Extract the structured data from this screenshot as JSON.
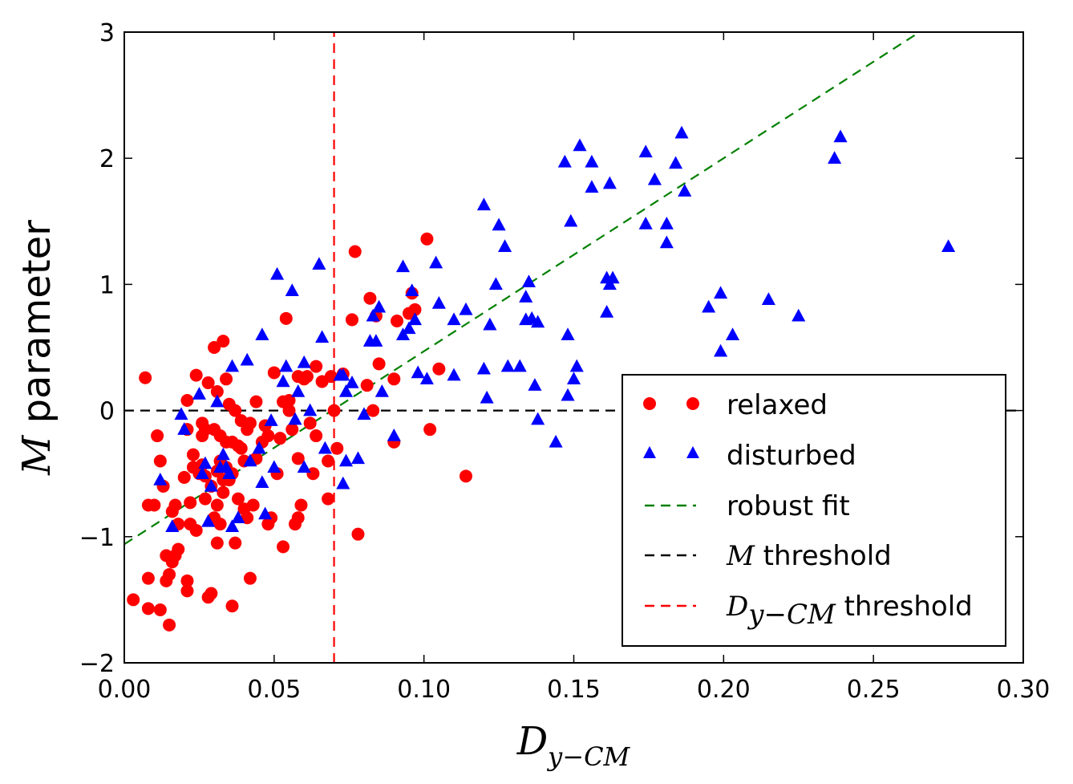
{
  "chart_data": {
    "type": "scatter",
    "xlabel": {
      "main": "D",
      "sub": "y−CM"
    },
    "ylabel": {
      "math": "M",
      "text": " parameter"
    },
    "xlim": [
      0.0,
      0.3
    ],
    "ylim": [
      -2,
      3
    ],
    "x_ticks": [
      0.0,
      0.05,
      0.1,
      0.15,
      0.2,
      0.25,
      0.3
    ],
    "x_tick_labels": [
      "0.00",
      "0.05",
      "0.10",
      "0.15",
      "0.20",
      "0.25",
      "0.30"
    ],
    "y_ticks": [
      -2,
      -1,
      0,
      1,
      2,
      3
    ],
    "y_tick_labels": [
      "−2",
      "−1",
      "0",
      "1",
      "2",
      "3"
    ],
    "legend_placement": "lower-right",
    "colors": {
      "relaxed": "#ff0000",
      "disturbed": "#0000ff",
      "robust_fit": "#008000",
      "m_threshold": "#000000",
      "d_threshold": "#ff0000"
    },
    "legend": [
      {
        "key": "relaxed",
        "label": "relaxed",
        "marker": "circle"
      },
      {
        "key": "disturbed",
        "label": "disturbed",
        "marker": "triangle"
      },
      {
        "key": "robust_fit",
        "label": "robust fit",
        "marker": "dashed-line"
      },
      {
        "key": "m_threshold",
        "label_math": "M",
        "label": " threshold",
        "marker": "dashed-line"
      },
      {
        "key": "d_threshold",
        "label_math": "D",
        "label_sub": "y−CM",
        "label": " threshold",
        "marker": "dashed-line"
      }
    ],
    "lines": {
      "robust_fit": {
        "slope": 15.3,
        "intercept": -1.06
      },
      "m_threshold_y": 0,
      "d_threshold_x": 0.07
    },
    "series": [
      {
        "name": "relaxed",
        "marker": "circle",
        "points": [
          [
            0.003,
            -1.5
          ],
          [
            0.007,
            0.26
          ],
          [
            0.008,
            -1.33
          ],
          [
            0.008,
            -0.75
          ],
          [
            0.008,
            -1.57
          ],
          [
            0.01,
            -0.75
          ],
          [
            0.011,
            -0.2
          ],
          [
            0.012,
            -1.58
          ],
          [
            0.012,
            -0.4
          ],
          [
            0.013,
            -0.6
          ],
          [
            0.014,
            -1.35
          ],
          [
            0.014,
            -1.15
          ],
          [
            0.015,
            -1.7
          ],
          [
            0.015,
            -1.3
          ],
          [
            0.016,
            -1.2
          ],
          [
            0.016,
            -0.8
          ],
          [
            0.017,
            -1.15
          ],
          [
            0.017,
            -0.75
          ],
          [
            0.018,
            -1.1
          ],
          [
            0.018,
            -0.9
          ],
          [
            0.02,
            -0.53
          ],
          [
            0.021,
            -1.35
          ],
          [
            0.021,
            0.08
          ],
          [
            0.021,
            -0.15
          ],
          [
            0.021,
            -1.43
          ],
          [
            0.022,
            -0.73
          ],
          [
            0.022,
            -0.9
          ],
          [
            0.023,
            -0.45
          ],
          [
            0.023,
            -0.35
          ],
          [
            0.024,
            0.28
          ],
          [
            0.024,
            -0.95
          ],
          [
            0.025,
            -0.5
          ],
          [
            0.026,
            -0.43
          ],
          [
            0.026,
            -0.2
          ],
          [
            0.026,
            -0.1
          ],
          [
            0.027,
            -0.7
          ],
          [
            0.027,
            -0.15
          ],
          [
            0.027,
            -0.52
          ],
          [
            0.028,
            0.22
          ],
          [
            0.028,
            -1.48
          ],
          [
            0.029,
            -0.6
          ],
          [
            0.029,
            -1.45
          ],
          [
            0.03,
            0.5
          ],
          [
            0.03,
            -0.85
          ],
          [
            0.03,
            -0.15
          ],
          [
            0.031,
            -0.48
          ],
          [
            0.031,
            -1.05
          ],
          [
            0.031,
            -0.75
          ],
          [
            0.031,
            0.15
          ],
          [
            0.032,
            -0.9
          ],
          [
            0.032,
            -0.2
          ],
          [
            0.032,
            -0.4
          ],
          [
            0.033,
            0.55
          ],
          [
            0.033,
            -0.55
          ],
          [
            0.033,
            -0.65
          ],
          [
            0.034,
            0.25
          ],
          [
            0.034,
            -0.25
          ],
          [
            0.034,
            -0.45
          ],
          [
            0.035,
            -0.55
          ],
          [
            0.035,
            0.05
          ],
          [
            0.036,
            -0.25
          ],
          [
            0.036,
            -0.5
          ],
          [
            0.036,
            -1.55
          ],
          [
            0.037,
            0.0
          ],
          [
            0.037,
            -1.05
          ],
          [
            0.038,
            -0.28
          ],
          [
            0.038,
            -0.7
          ],
          [
            0.039,
            -0.3
          ],
          [
            0.039,
            -0.08
          ],
          [
            0.04,
            -0.78
          ],
          [
            0.04,
            -0.4
          ],
          [
            0.041,
            -0.15
          ],
          [
            0.041,
            -0.85
          ],
          [
            0.042,
            -0.1
          ],
          [
            0.042,
            -1.33
          ],
          [
            0.043,
            -0.75
          ],
          [
            0.044,
            0.07
          ],
          [
            0.044,
            -0.38
          ],
          [
            0.046,
            -0.25
          ],
          [
            0.047,
            -0.12
          ],
          [
            0.048,
            -0.2
          ],
          [
            0.048,
            -0.9
          ],
          [
            0.049,
            -0.85
          ],
          [
            0.05,
            0.3
          ],
          [
            0.051,
            -0.5
          ],
          [
            0.052,
            -0.22
          ],
          [
            0.053,
            -1.08
          ],
          [
            0.053,
            0.07
          ],
          [
            0.054,
            0.73
          ],
          [
            0.055,
            0.0
          ],
          [
            0.055,
            0.08
          ],
          [
            0.056,
            -0.15
          ],
          [
            0.057,
            -0.9
          ],
          [
            0.058,
            -0.38
          ],
          [
            0.058,
            0.27
          ],
          [
            0.058,
            -0.85
          ],
          [
            0.059,
            -0.75
          ],
          [
            0.06,
            0.25
          ],
          [
            0.061,
            0.27
          ],
          [
            0.062,
            -0.1
          ],
          [
            0.063,
            -0.5
          ],
          [
            0.064,
            0.35
          ],
          [
            0.064,
            -0.2
          ],
          [
            0.066,
            0.23
          ],
          [
            0.068,
            -0.7
          ],
          [
            0.068,
            -0.4
          ],
          [
            0.069,
            0.27
          ],
          [
            0.07,
            0.0
          ],
          [
            0.071,
            -0.3
          ],
          [
            0.073,
            0.29
          ],
          [
            0.076,
            0.72
          ],
          [
            0.077,
            1.26
          ],
          [
            0.078,
            -0.98
          ],
          [
            0.081,
            0.2
          ],
          [
            0.082,
            0.89
          ],
          [
            0.083,
            0.0
          ],
          [
            0.084,
            0.75
          ],
          [
            0.085,
            0.37
          ],
          [
            0.09,
            0.25
          ],
          [
            0.09,
            -0.25
          ],
          [
            0.091,
            0.71
          ],
          [
            0.095,
            0.77
          ],
          [
            0.096,
            0.93
          ],
          [
            0.097,
            0.8
          ],
          [
            0.101,
            1.36
          ],
          [
            0.102,
            -0.15
          ],
          [
            0.105,
            0.33
          ],
          [
            0.114,
            -0.52
          ]
        ]
      },
      {
        "name": "disturbed",
        "marker": "triangle",
        "points": [
          [
            0.012,
            -0.55
          ],
          [
            0.016,
            -0.92
          ],
          [
            0.019,
            -0.03
          ],
          [
            0.02,
            -0.15
          ],
          [
            0.025,
            0.13
          ],
          [
            0.026,
            -0.5
          ],
          [
            0.027,
            -0.42
          ],
          [
            0.028,
            -0.88
          ],
          [
            0.029,
            -0.6
          ],
          [
            0.031,
            0.07
          ],
          [
            0.032,
            -0.45
          ],
          [
            0.033,
            -0.35
          ],
          [
            0.034,
            -0.45
          ],
          [
            0.035,
            -0.5
          ],
          [
            0.036,
            -0.92
          ],
          [
            0.036,
            0.35
          ],
          [
            0.038,
            -0.85
          ],
          [
            0.041,
            0.4
          ],
          [
            0.042,
            -0.4
          ],
          [
            0.045,
            -0.3
          ],
          [
            0.046,
            0.6
          ],
          [
            0.046,
            -0.57
          ],
          [
            0.047,
            -0.82
          ],
          [
            0.049,
            -0.08
          ],
          [
            0.05,
            -0.45
          ],
          [
            0.051,
            1.08
          ],
          [
            0.053,
            0.23
          ],
          [
            0.054,
            0.35
          ],
          [
            0.056,
            0.95
          ],
          [
            0.057,
            -0.07
          ],
          [
            0.058,
            0.15
          ],
          [
            0.06,
            0.38
          ],
          [
            0.06,
            -0.45
          ],
          [
            0.062,
            0.0
          ],
          [
            0.065,
            1.16
          ],
          [
            0.066,
            0.58
          ],
          [
            0.067,
            -0.3
          ],
          [
            0.072,
            0.28
          ],
          [
            0.073,
            0.28
          ],
          [
            0.073,
            -0.58
          ],
          [
            0.074,
            0.15
          ],
          [
            0.074,
            -0.4
          ],
          [
            0.076,
            0.22
          ],
          [
            0.078,
            -0.38
          ],
          [
            0.08,
            -0.03
          ],
          [
            0.082,
            0.55
          ],
          [
            0.083,
            0.75
          ],
          [
            0.084,
            0.55
          ],
          [
            0.085,
            0.82
          ],
          [
            0.086,
            0.15
          ],
          [
            0.09,
            -0.2
          ],
          [
            0.093,
            1.14
          ],
          [
            0.093,
            0.6
          ],
          [
            0.095,
            0.65
          ],
          [
            0.096,
            0.95
          ],
          [
            0.097,
            0.72
          ],
          [
            0.098,
            0.3
          ],
          [
            0.101,
            0.25
          ],
          [
            0.104,
            1.17
          ],
          [
            0.105,
            0.85
          ],
          [
            0.11,
            0.72
          ],
          [
            0.11,
            0.28
          ],
          [
            0.114,
            0.8
          ],
          [
            0.12,
            1.63
          ],
          [
            0.12,
            0.33
          ],
          [
            0.121,
            0.1
          ],
          [
            0.122,
            0.68
          ],
          [
            0.124,
            1.0
          ],
          [
            0.125,
            1.47
          ],
          [
            0.127,
            1.3
          ],
          [
            0.128,
            0.35
          ],
          [
            0.132,
            0.35
          ],
          [
            0.134,
            0.9
          ],
          [
            0.134,
            0.72
          ],
          [
            0.135,
            1.02
          ],
          [
            0.136,
            0.73
          ],
          [
            0.137,
            0.2
          ],
          [
            0.138,
            0.7
          ],
          [
            0.138,
            -0.07
          ],
          [
            0.144,
            -0.25
          ],
          [
            0.147,
            1.97
          ],
          [
            0.148,
            0.6
          ],
          [
            0.148,
            0.12
          ],
          [
            0.149,
            1.5
          ],
          [
            0.15,
            0.25
          ],
          [
            0.151,
            0.35
          ],
          [
            0.152,
            2.1
          ],
          [
            0.156,
            1.97
          ],
          [
            0.156,
            1.77
          ],
          [
            0.161,
            0.78
          ],
          [
            0.161,
            1.05
          ],
          [
            0.162,
            1.0
          ],
          [
            0.162,
            1.8
          ],
          [
            0.163,
            1.05
          ],
          [
            0.174,
            2.05
          ],
          [
            0.174,
            1.48
          ],
          [
            0.177,
            1.83
          ],
          [
            0.181,
            1.48
          ],
          [
            0.181,
            1.33
          ],
          [
            0.184,
            1.96
          ],
          [
            0.186,
            2.2
          ],
          [
            0.187,
            1.74
          ],
          [
            0.195,
            0.82
          ],
          [
            0.199,
            0.47
          ],
          [
            0.199,
            0.93
          ],
          [
            0.203,
            0.6
          ],
          [
            0.215,
            0.88
          ],
          [
            0.225,
            0.75
          ],
          [
            0.237,
            2.0
          ],
          [
            0.239,
            2.17
          ],
          [
            0.275,
            1.3
          ]
        ]
      }
    ]
  }
}
